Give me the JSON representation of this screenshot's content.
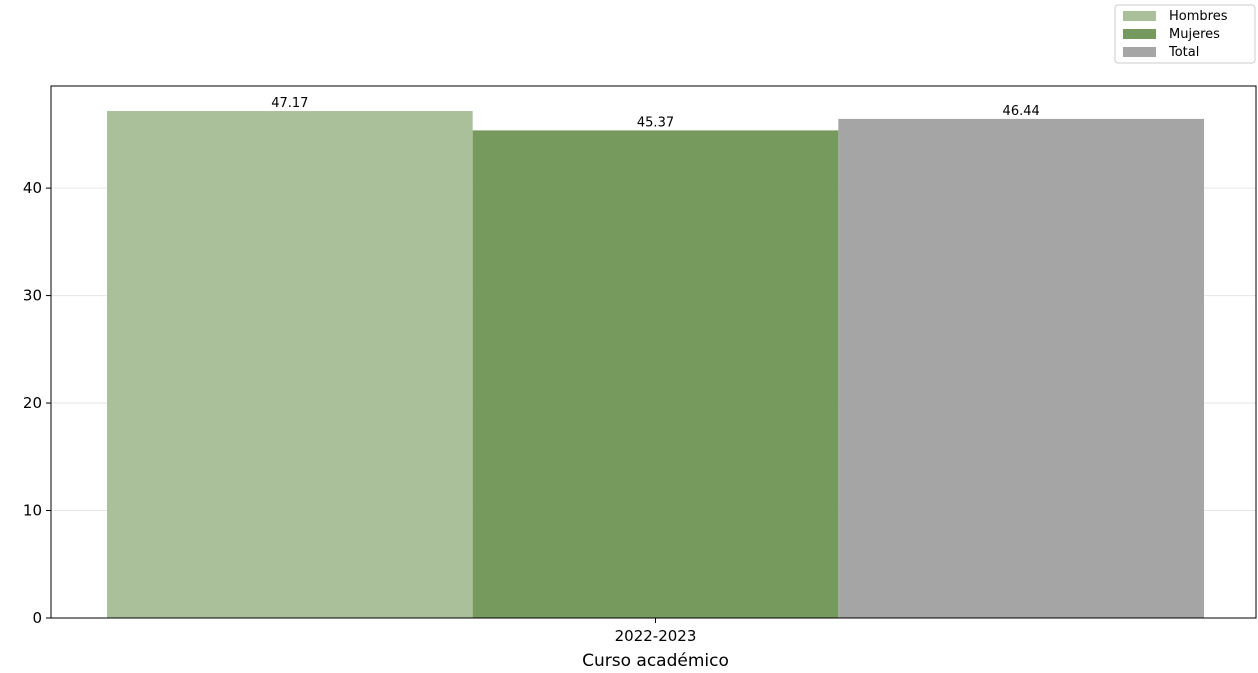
{
  "chart_data": {
    "type": "bar",
    "title": "",
    "xlabel": "Curso académico",
    "ylabel": "",
    "categories": [
      "2022-2023"
    ],
    "series": [
      {
        "name": "Hombres",
        "values": [
          47.17
        ],
        "color": "#a9c09a"
      },
      {
        "name": "Mujeres",
        "values": [
          45.37
        ],
        "color": "#76995d"
      },
      {
        "name": "Total",
        "values": [
          46.44
        ],
        "color": "#a5a5a5"
      }
    ],
    "data_labels": [
      "47.17",
      "45.37",
      "46.44"
    ],
    "ylim": [
      0,
      49.5
    ],
    "yticks": [
      0,
      10,
      20,
      30,
      40
    ],
    "grid": true,
    "legend_position": "top-right"
  }
}
